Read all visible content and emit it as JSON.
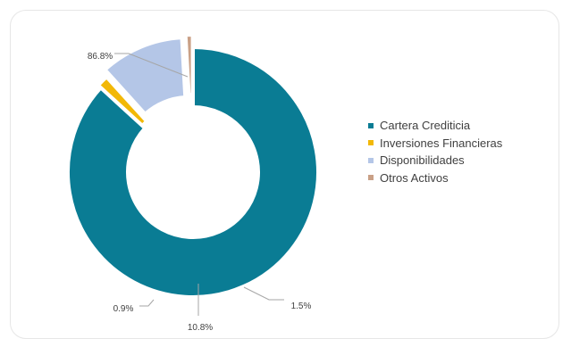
{
  "chart_data": {
    "type": "pie",
    "variant": "donut",
    "title": "",
    "series": [
      {
        "name": "Cartera Crediticia",
        "value": 86.8,
        "label": "86.8%",
        "color": "#0a7c94"
      },
      {
        "name": "Inversiones Financieras",
        "value": 1.5,
        "label": "1.5%",
        "color": "#f2b807"
      },
      {
        "name": "Disponibilidades",
        "value": 10.8,
        "label": "10.8%",
        "color": "#b4c6e7"
      },
      {
        "name": "Otros Activos",
        "value": 0.9,
        "label": "0.9%",
        "color": "#c9a086"
      }
    ],
    "legend_position": "right"
  }
}
